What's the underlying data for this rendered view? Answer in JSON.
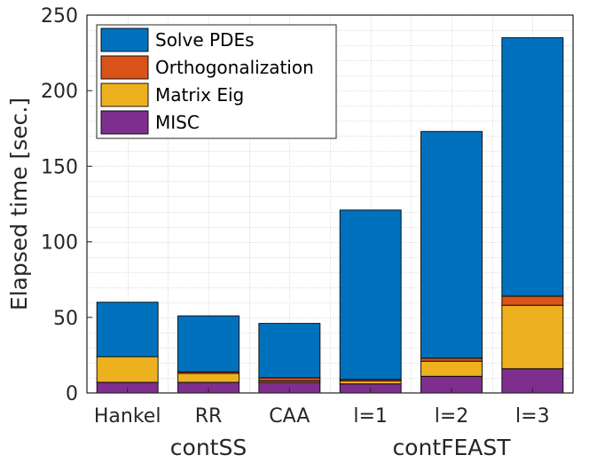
{
  "chart_data": {
    "type": "bar",
    "stacked": true,
    "title": "",
    "xlabel": "",
    "ylabel": "Elapsed time [sec.]",
    "ylim": [
      0,
      250
    ],
    "yticks": [
      0,
      50,
      100,
      150,
      200,
      250
    ],
    "grid": true,
    "legend_position": "top-left",
    "categories": [
      "Hankel",
      "RR",
      "CAA",
      "l=1",
      "l=2",
      "l=3"
    ],
    "groups": [
      {
        "label": "contSS",
        "categories": [
          "Hankel",
          "RR",
          "CAA"
        ]
      },
      {
        "label": "contFEAST",
        "categories": [
          "l=1",
          "l=2",
          "l=3"
        ]
      }
    ],
    "series": [
      {
        "name": "MISC",
        "color": "#7E2F8E",
        "values": [
          7,
          7,
          7,
          6,
          11,
          16
        ]
      },
      {
        "name": "Matrix Eig",
        "color": "#EDB120",
        "values": [
          17,
          6,
          1,
          2,
          10,
          42
        ]
      },
      {
        "name": "Orthogonalization",
        "color": "#D95319",
        "values": [
          0,
          1,
          2,
          1,
          2,
          6
        ]
      },
      {
        "name": "Solve PDEs",
        "color": "#0072BD",
        "values": [
          36,
          37,
          36,
          112,
          150,
          171
        ]
      }
    ],
    "legend_order": [
      "Solve PDEs",
      "Orthogonalization",
      "Matrix Eig",
      "MISC"
    ]
  }
}
